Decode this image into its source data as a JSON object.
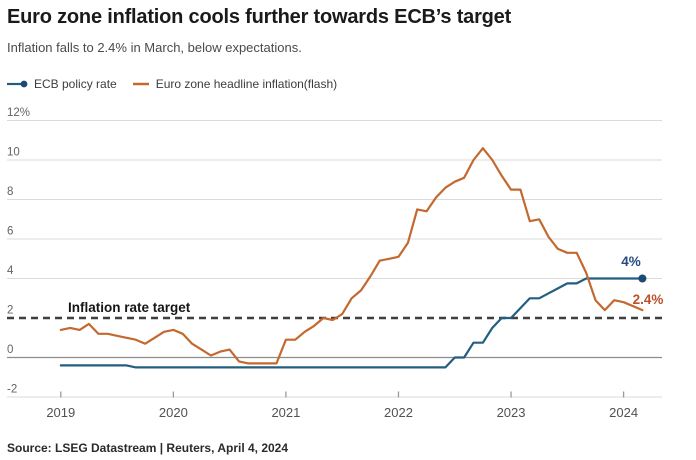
{
  "footer": {
    "source": "Source: LSEG Datastream | Reuters, April 4, 2024"
  },
  "colors": {
    "ecb_blue": "#235e80",
    "ecb_dot_blue": "#1c4a70",
    "ecb_label_blue": "#27497c",
    "inflation_orange": "#c3692f",
    "inflation_label_orange": "#bc4f2a",
    "grid": "#dbdbdb",
    "zero_line": "#8c8c8c",
    "axis_tick": "#9a9a9a",
    "target_dash": "#3f3f3f"
  },
  "chart_data": {
    "type": "line",
    "title": "Euro zone inflation cools further towards ECB’s target",
    "subtitle": "Inflation falls to 2.4% in March, below expectations.",
    "frequency": "monthly",
    "x_start": "2019-01",
    "x_end": "2024-03",
    "ylim": [
      -2,
      12
    ],
    "grid": true,
    "legend_position": "top-left",
    "y_axis": {
      "ticks": [
        {
          "label": "12%",
          "value": 12
        },
        {
          "label": "10",
          "value": 10
        },
        {
          "label": "8",
          "value": 8
        },
        {
          "label": "6",
          "value": 6
        },
        {
          "label": "4",
          "value": 4
        },
        {
          "label": "2",
          "value": 2
        },
        {
          "label": "0",
          "value": 0
        },
        {
          "label": "-2",
          "value": -2
        }
      ],
      "zero_line_value": 0,
      "target_line": {
        "value": 2,
        "label": "Inflation rate target"
      }
    },
    "x_axis": {
      "ticks": [
        {
          "label": "2019",
          "year": 2019
        },
        {
          "label": "2020",
          "year": 2020
        },
        {
          "label": "2021",
          "year": 2021
        },
        {
          "label": "2022",
          "year": 2022
        },
        {
          "label": "2023",
          "year": 2023
        },
        {
          "label": "2024",
          "year": 2024
        }
      ]
    },
    "series": [
      {
        "key": "ecb-policy-rate",
        "name": "ECB policy rate",
        "color": "#235e80",
        "end_dot": true,
        "end_label": "4%",
        "values": [
          -0.4,
          -0.4,
          -0.4,
          -0.4,
          -0.4,
          -0.4,
          -0.4,
          -0.4,
          -0.5,
          -0.5,
          -0.5,
          -0.5,
          -0.5,
          -0.5,
          -0.5,
          -0.5,
          -0.5,
          -0.5,
          -0.5,
          -0.5,
          -0.5,
          -0.5,
          -0.5,
          -0.5,
          -0.5,
          -0.5,
          -0.5,
          -0.5,
          -0.5,
          -0.5,
          -0.5,
          -0.5,
          -0.5,
          -0.5,
          -0.5,
          -0.5,
          -0.5,
          -0.5,
          -0.5,
          -0.5,
          -0.5,
          -0.5,
          0.0,
          0.0,
          0.75,
          0.75,
          1.5,
          2.0,
          2.0,
          2.5,
          3.0,
          3.0,
          3.25,
          3.5,
          3.75,
          3.75,
          4.0,
          4.0,
          4.0,
          4.0,
          4.0,
          4.0,
          4.0
        ]
      },
      {
        "key": "headline-inflation",
        "name": "Euro zone headline inflation(flash)",
        "color": "#c3692f",
        "end_dot": false,
        "end_label": "2.4%",
        "values": [
          1.4,
          1.5,
          1.4,
          1.7,
          1.2,
          1.2,
          1.1,
          1.0,
          0.9,
          0.7,
          1.0,
          1.3,
          1.4,
          1.2,
          0.7,
          0.4,
          0.1,
          0.3,
          0.4,
          -0.2,
          -0.3,
          -0.3,
          -0.3,
          -0.3,
          0.9,
          0.9,
          1.3,
          1.6,
          2.0,
          1.9,
          2.2,
          3.0,
          3.4,
          4.1,
          4.9,
          5.0,
          5.1,
          5.8,
          7.5,
          7.4,
          8.1,
          8.6,
          8.9,
          9.1,
          10.0,
          10.6,
          10.0,
          9.2,
          8.5,
          8.5,
          6.9,
          7.0,
          6.1,
          5.5,
          5.3,
          5.3,
          4.3,
          2.9,
          2.4,
          2.9,
          2.8,
          2.6,
          2.4
        ]
      }
    ]
  }
}
